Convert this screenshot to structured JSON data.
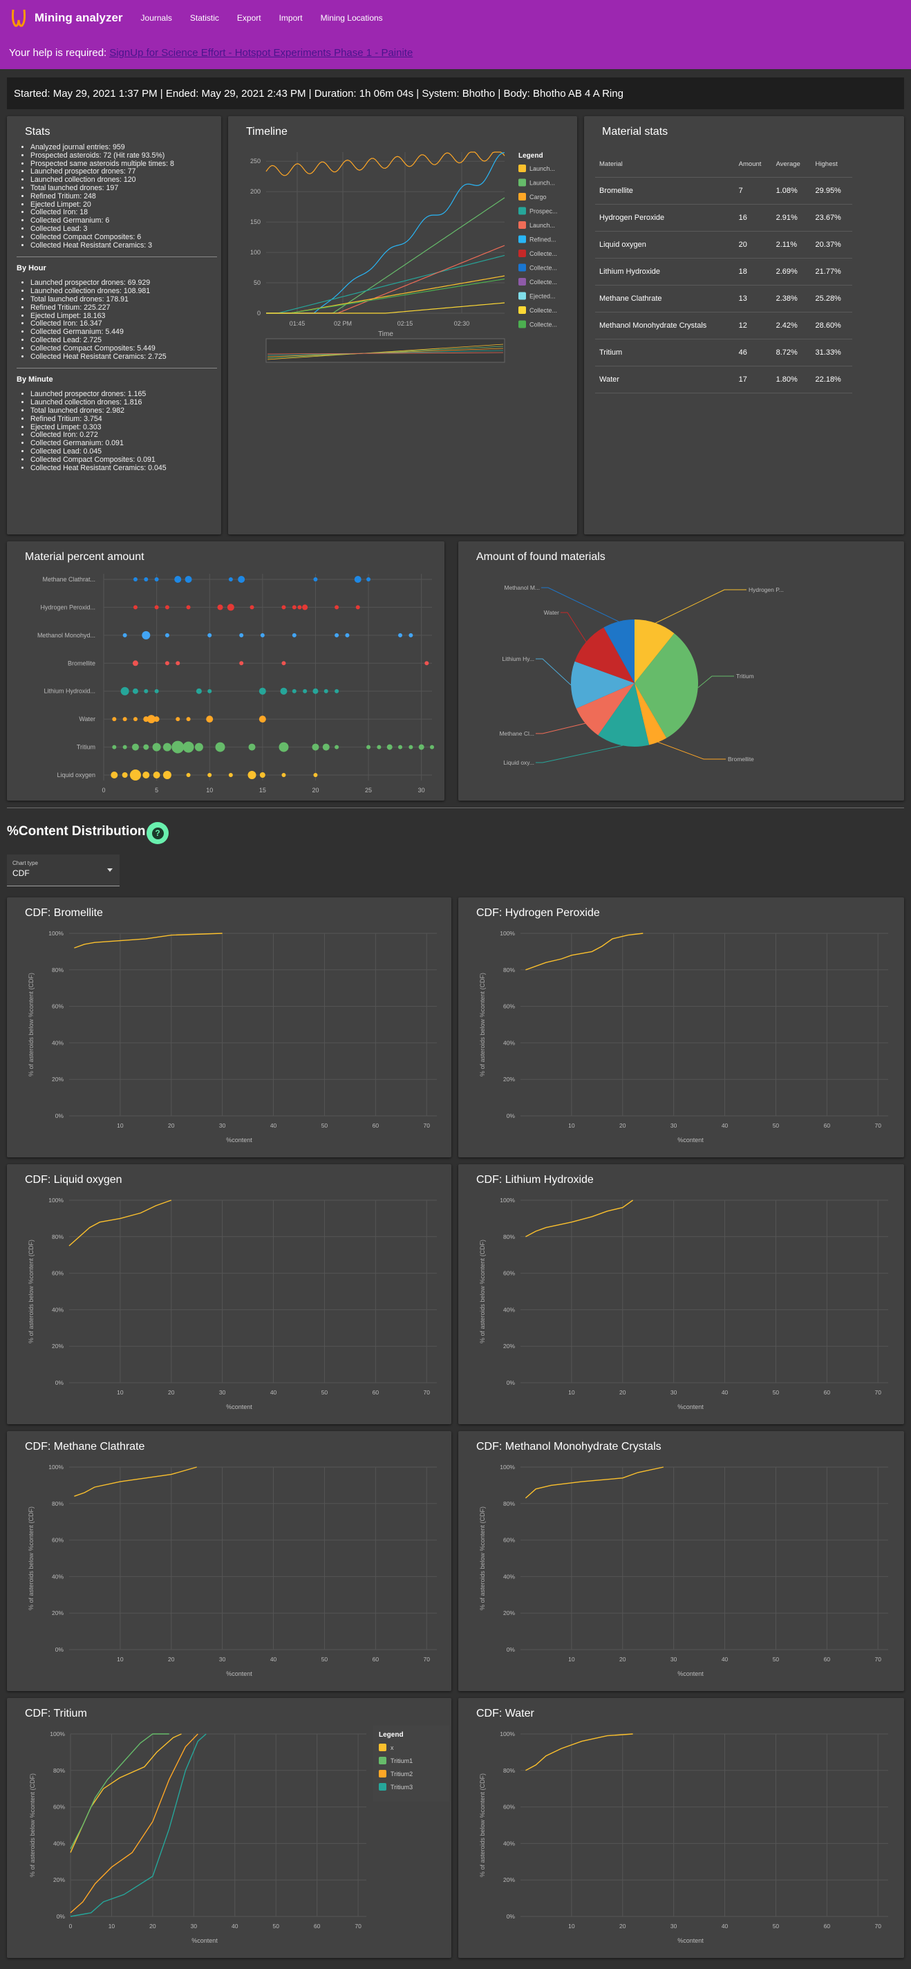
{
  "app": {
    "title": "Mining analyzer",
    "nav": [
      "Journals",
      "Statistic",
      "Export",
      "Import",
      "Mining Locations"
    ]
  },
  "banner": {
    "prefix": "Your help is required:",
    "link": "SignUp for Science Effort - Hotspot Experiments Phase 1 - Painite"
  },
  "summary": "Started: May 29, 2021 1:37 PM | Ended: May 29, 2021 2:43 PM | Duration: 1h 06m 04s | System: Bhotho | Body: Bhotho AB 4 A Ring",
  "stats": {
    "title": "Stats",
    "general": [
      "Analyzed journal entries: 959",
      "Prospected asteroids: 72 (Hit rate 93.5%)",
      "Prospected same asteroids multiple times: 8",
      "Launched prospector drones: 77",
      "Launched collection drones: 120",
      "Total launched drones: 197",
      "Refined Tritium: 248",
      "Ejected Limpet: 20",
      "Collected Iron: 18",
      "Collected Germanium: 6",
      "Collected Lead: 3",
      "Collected Compact Composites: 6",
      "Collected Heat Resistant Ceramics: 3"
    ],
    "by_hour_title": "By Hour",
    "by_hour": [
      "Launched prospector drones: 69.929",
      "Launched collection drones: 108.981",
      "Total launched drones: 178.91",
      "Refined Tritium: 225.227",
      "Ejected Limpet: 18.163",
      "Collected Iron: 16.347",
      "Collected Germanium: 5.449",
      "Collected Lead: 2.725",
      "Collected Compact Composites: 5.449",
      "Collected Heat Resistant Ceramics: 2.725"
    ],
    "by_minute_title": "By Minute",
    "by_minute": [
      "Launched prospector drones: 1.165",
      "Launched collection drones: 1.816",
      "Total launched drones: 2.982",
      "Refined Tritium: 3.754",
      "Ejected Limpet: 0.303",
      "Collected Iron: 0.272",
      "Collected Germanium: 0.091",
      "Collected Lead: 0.045",
      "Collected Compact Composites: 0.091",
      "Collected Heat Resistant Ceramics: 0.045"
    ]
  },
  "timeline": {
    "title": "Timeline",
    "legend_title": "Legend",
    "legend": [
      "Launch...",
      "Launch...",
      "Cargo",
      "Prospec...",
      "Launch...",
      "Refined...",
      "Collecte...",
      "Collecte...",
      "Collecte...",
      "Ejected...",
      "Collecte...",
      "Collecte..."
    ],
    "legend_colors": [
      "#fbc02d",
      "#66bb6a",
      "#ffa726",
      "#26a69a",
      "#ef6c57",
      "#29b6f6",
      "#c62828",
      "#1976d2",
      "#8e5aa8",
      "#80deea",
      "#fdd835",
      "#4caf50"
    ],
    "xlabel": "Time",
    "xticks": [
      "01:45",
      "02 PM",
      "02:15",
      "02:30"
    ],
    "yticks": [
      "0",
      "50",
      "100",
      "150",
      "200",
      "250"
    ]
  },
  "material_stats": {
    "title": "Material stats",
    "headers": [
      "Material",
      "Amount",
      "Average",
      "Highest"
    ],
    "rows": [
      [
        "Bromellite",
        "7",
        "1.08%",
        "29.95%"
      ],
      [
        "Hydrogen Peroxide",
        "16",
        "2.91%",
        "23.67%"
      ],
      [
        "Liquid oxygen",
        "20",
        "2.11%",
        "20.37%"
      ],
      [
        "Lithium Hydroxide",
        "18",
        "2.69%",
        "21.77%"
      ],
      [
        "Methane Clathrate",
        "13",
        "2.38%",
        "25.28%"
      ],
      [
        "Methanol Monohydrate Crystals",
        "12",
        "2.42%",
        "28.60%"
      ],
      [
        "Tritium",
        "46",
        "8.72%",
        "31.33%"
      ],
      [
        "Water",
        "17",
        "1.80%",
        "22.18%"
      ]
    ]
  },
  "percent_chart": {
    "title": "Material percent amount",
    "rows": [
      "Methane Clathrat...",
      "Hydrogen Peroxid...",
      "Methanol Monohyd...",
      "Bromellite",
      "Lithium Hydroxid...",
      "Water",
      "Tritium",
      "Liquid oxygen"
    ],
    "colors": [
      "#1e88e5",
      "#e53935",
      "#42a5f5",
      "#ef5350",
      "#26a69a",
      "#ffa726",
      "#66bb6a",
      "#fbc02d"
    ],
    "xticks": [
      "0",
      "5",
      "10",
      "15",
      "20",
      "25",
      "30"
    ]
  },
  "pie_chart": {
    "title": "Amount of found materials",
    "labels": [
      "Hydrogen P...",
      "Tritium",
      "Bromellite",
      "Liquid oxy...",
      "Methane Cl...",
      "Lithium Hy...",
      "Water",
      "Methanol M..."
    ],
    "values": [
      16,
      46,
      7,
      20,
      13,
      18,
      17,
      12
    ],
    "colors": [
      "#fbc02d",
      "#66bb6a",
      "#ffa726",
      "#26a69a",
      "#ef6c57",
      "#4eaad6",
      "#c62828",
      "#1e76c8"
    ]
  },
  "content": {
    "title": "%Content Distribution",
    "select_label": "Chart type",
    "select_value": "CDF"
  },
  "cdf_common": {
    "yticks": [
      "0%",
      "20%",
      "40%",
      "60%",
      "80%",
      "100%"
    ],
    "xticks": [
      "10",
      "20",
      "30",
      "40",
      "50",
      "60",
      "70"
    ],
    "xlabel": "%content",
    "ylabel": "% of asteroids below %content (CDF)"
  },
  "cdfs": [
    {
      "title": "CDF: Bromellite"
    },
    {
      "title": "CDF: Hydrogen Peroxide"
    },
    {
      "title": "CDF: Liquid oxygen"
    },
    {
      "title": "CDF: Lithium Hydroxide"
    },
    {
      "title": "CDF: Methane Clathrate"
    },
    {
      "title": "CDF: Methanol Monohydrate Crystals"
    },
    {
      "title": "CDF: Tritium",
      "legend_title": "Legend",
      "legend": [
        "x",
        "Tritium1",
        "Tritium2",
        "Tritium3"
      ],
      "legend_colors": [
        "#fbc02d",
        "#66bb6a",
        "#ffa726",
        "#26a69a"
      ],
      "xticks": [
        "0",
        "10",
        "20",
        "30",
        "40",
        "50",
        "60",
        "70"
      ]
    },
    {
      "title": "CDF: Water"
    }
  ],
  "chart_data": [
    {
      "type": "bar",
      "title": "",
      "categories": [
        "Bromellite",
        "Hydrogen Peroxide",
        "Liquid oxygen",
        "Lithium Hydroxide",
        "Methane Clathrate",
        "Methanol Monohydrate Crystals",
        "Tritium",
        "Water"
      ],
      "values": [
        7,
        16,
        20,
        18,
        13,
        12,
        46,
        17
      ]
    },
    {
      "type": "pie",
      "title": "Amount of found materials",
      "categories": [
        "Hydrogen Peroxide",
        "Tritium",
        "Bromellite",
        "Liquid oxygen",
        "Methane Clathrate",
        "Lithium Hydroxide",
        "Water",
        "Methanol Monohydrate Crystals"
      ],
      "values": [
        16,
        46,
        7,
        20,
        13,
        18,
        17,
        12
      ]
    },
    {
      "type": "line",
      "title": "CDF: Bromellite",
      "x": [
        1,
        5,
        10,
        20,
        30
      ],
      "y": [
        92,
        95,
        96,
        99,
        100
      ]
    },
    {
      "type": "line",
      "title": "CDF: Hydrogen Peroxide",
      "x": [
        1,
        5,
        10,
        15,
        20,
        24
      ],
      "y": [
        80,
        85,
        88,
        90,
        97,
        100
      ]
    },
    {
      "type": "line",
      "title": "CDF: Liquid oxygen",
      "x": [
        0,
        3,
        5,
        10,
        15,
        20
      ],
      "y": [
        75,
        82,
        88,
        92,
        96,
        100
      ]
    },
    {
      "type": "line",
      "title": "CDF: Lithium Hydroxide",
      "x": [
        1,
        5,
        10,
        15,
        20,
        22
      ],
      "y": [
        80,
        85,
        88,
        91,
        96,
        100
      ]
    },
    {
      "type": "line",
      "title": "CDF: Methane Clathrate",
      "x": [
        1,
        5,
        10,
        20,
        25
      ],
      "y": [
        84,
        87,
        91,
        96,
        100
      ]
    },
    {
      "type": "line",
      "title": "CDF: Methanol Monohydrate Crystals",
      "x": [
        1,
        3,
        10,
        20,
        28
      ],
      "y": [
        83,
        88,
        91,
        94,
        100
      ]
    },
    {
      "type": "line",
      "title": "CDF: Tritium",
      "x": [
        0,
        5,
        10,
        20,
        25,
        31
      ],
      "y": [
        35,
        55,
        70,
        85,
        95,
        100
      ]
    },
    {
      "type": "line",
      "title": "CDF: Water",
      "x": [
        1,
        5,
        10,
        15,
        22
      ],
      "y": [
        80,
        88,
        95,
        98,
        100
      ]
    }
  ]
}
